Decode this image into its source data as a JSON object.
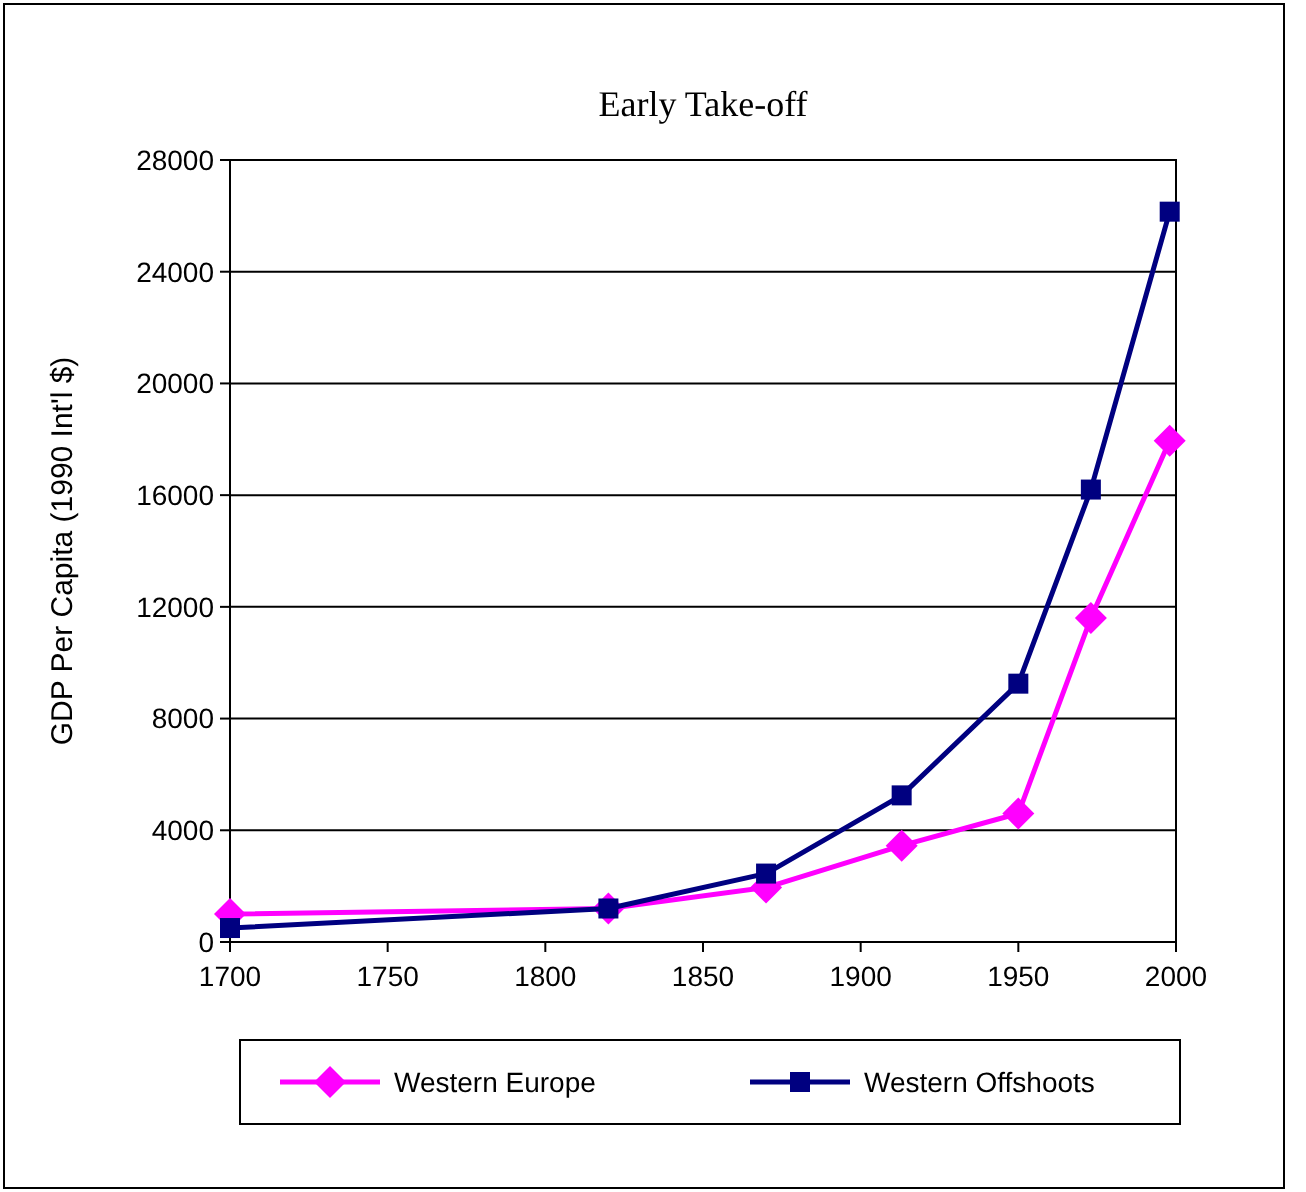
{
  "chart_data": {
    "type": "line",
    "title": "Early Take-off",
    "ylabel": "GDP Per Capita (1990 Int'l $)",
    "x": [
      1700,
      1820,
      1870,
      1913,
      1950,
      1973,
      1998
    ],
    "series": [
      {
        "name": "Western Europe",
        "color": "#ff00ff",
        "marker": "diamond",
        "values": [
          1000,
          1200,
          1950,
          3450,
          4600,
          11600,
          17950
        ]
      },
      {
        "name": "Western Offshoots",
        "color": "#000080",
        "marker": "square",
        "values": [
          500,
          1200,
          2450,
          5250,
          9250,
          16200,
          26150
        ]
      }
    ],
    "xlim": [
      1700,
      2000
    ],
    "xticks": [
      1700,
      1750,
      1800,
      1850,
      1900,
      1950,
      2000
    ],
    "ylim": [
      0,
      28000
    ],
    "yticks": [
      0,
      4000,
      8000,
      12000,
      16000,
      20000,
      24000,
      28000
    ],
    "grid": "y",
    "legend": "bottom"
  }
}
